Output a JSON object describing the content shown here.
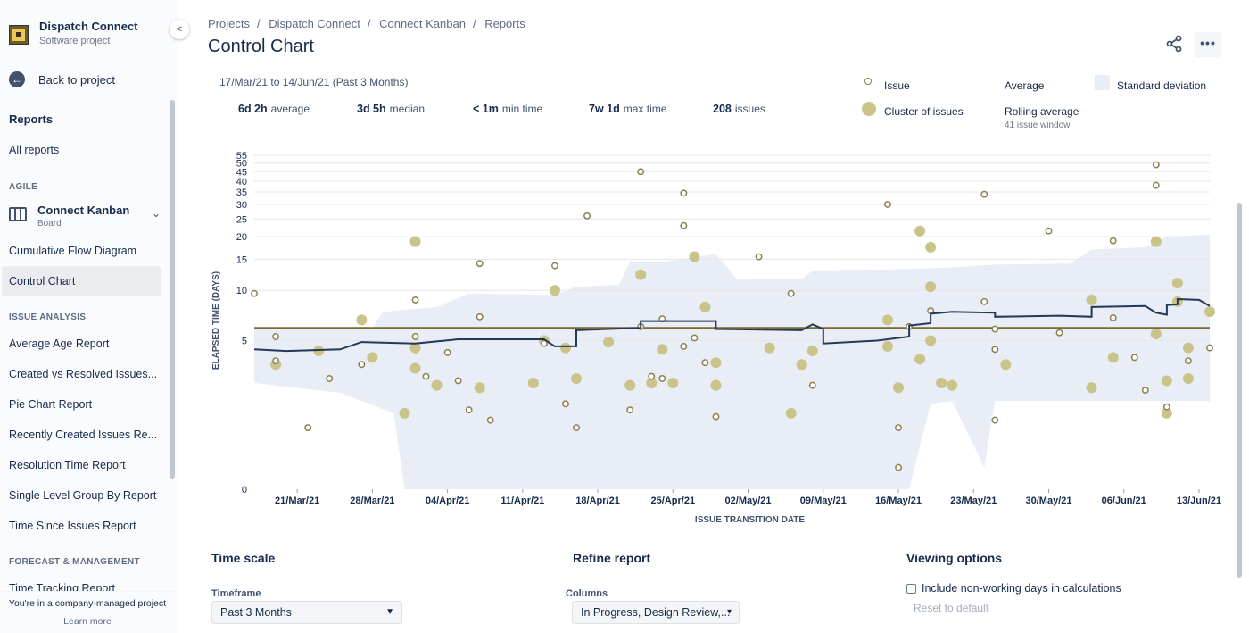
{
  "sidebar": {
    "project_name": "Dispatch Connect",
    "project_type": "Software project",
    "back_label": "Back to project",
    "reports_heading": "Reports",
    "all_reports": "All reports",
    "agile_label": "AGILE",
    "board_name": "Connect Kanban",
    "board_type": "Board",
    "agile_items": [
      "Cumulative Flow Diagram",
      "Control Chart"
    ],
    "issue_analysis_label": "ISSUE ANALYSIS",
    "issue_analysis_items": [
      "Average Age Report",
      "Created vs Resolved Issues...",
      "Pie Chart Report",
      "Recently Created Issues Re...",
      "Resolution Time Report",
      "Single Level Group By Report",
      "Time Since Issues Report"
    ],
    "forecast_label": "FORECAST & MANAGEMENT",
    "forecast_items": [
      "Time Tracking Report"
    ],
    "footer_text": "You're in a company-managed project",
    "footer_link": "Learn more"
  },
  "breadcrumbs": [
    "Projects",
    "Dispatch Connect",
    "Connect Kanban",
    "Reports"
  ],
  "page_title": "Control Chart",
  "summary": {
    "date_range": "17/Mar/21 to 14/Jun/21 (Past 3 Months)",
    "average_value": "6d 2h",
    "average_label": "average",
    "median_value": "3d 5h",
    "median_label": "median",
    "min_value": "< 1m",
    "min_label": "min time",
    "max_value": "7w 1d",
    "max_label": "max time",
    "issues_value": "208",
    "issues_label": "issues"
  },
  "legend": {
    "issue": "Issue",
    "cluster": "Cluster of issues",
    "average": "Average",
    "rolling_average": "Rolling average",
    "rolling_window": "41 issue window",
    "std_dev": "Standard deviation"
  },
  "colors": {
    "issue_stroke": "#8a8150",
    "cluster_fill": "#c8c48a",
    "average_line": "#7a6a34",
    "rolling_line": "#253858",
    "std_band": "#e9edf5"
  },
  "chart_data": {
    "type": "scatter",
    "xlabel": "ISSUE TRANSITION DATE",
    "ylabel": "ELAPSED TIME (DAYS)",
    "y_scale": "log",
    "x_range": [
      "2021-03-17",
      "2021-06-14"
    ],
    "y_ticks": [
      0,
      5,
      10,
      15,
      20,
      25,
      30,
      35,
      40,
      45,
      50,
      55
    ],
    "x_ticks": [
      "21/Mar/21",
      "28/Mar/21",
      "04/Apr/21",
      "11/Apr/21",
      "18/Apr/21",
      "25/Apr/21",
      "02/May/21",
      "09/May/21",
      "16/May/21",
      "23/May/21",
      "30/May/21",
      "06/Jun/21",
      "13/Jun/21"
    ],
    "average": 6,
    "issues": [
      [
        "2021-03-17",
        9.6
      ],
      [
        "2021-03-19",
        5.3
      ],
      [
        "2021-03-19",
        3.7
      ],
      [
        "2021-03-22",
        1.1
      ],
      [
        "2021-03-24",
        2.8
      ],
      [
        "2021-03-27",
        3.5
      ],
      [
        "2021-04-01",
        8.8
      ],
      [
        "2021-04-01",
        5.3
      ],
      [
        "2021-04-02",
        2.9
      ],
      [
        "2021-04-04",
        4.2
      ],
      [
        "2021-04-05",
        2.7
      ],
      [
        "2021-04-06",
        1.6
      ],
      [
        "2021-04-07",
        14.2
      ],
      [
        "2021-04-07",
        7.0
      ],
      [
        "2021-04-08",
        1.3
      ],
      [
        "2021-04-13",
        4.8
      ],
      [
        "2021-04-14",
        13.8
      ],
      [
        "2021-04-15",
        1.8
      ],
      [
        "2021-04-16",
        1.1
      ],
      [
        "2021-04-17",
        26.0
      ],
      [
        "2021-04-21",
        1.6
      ],
      [
        "2021-04-22",
        6.1
      ],
      [
        "2021-04-22",
        45.0
      ],
      [
        "2021-04-23",
        2.9
      ],
      [
        "2021-04-24",
        6.8
      ],
      [
        "2021-04-24",
        2.8
      ],
      [
        "2021-04-26",
        4.6
      ],
      [
        "2021-04-26",
        34.5
      ],
      [
        "2021-04-26",
        23.0
      ],
      [
        "2021-04-27",
        5.2
      ],
      [
        "2021-04-28",
        3.6
      ],
      [
        "2021-04-29",
        1.4
      ],
      [
        "2021-05-03",
        15.5
      ],
      [
        "2021-05-06",
        9.6
      ],
      [
        "2021-05-08",
        2.5
      ],
      [
        "2021-05-15",
        30.0
      ],
      [
        "2021-05-16",
        1.1
      ],
      [
        "2021-05-16",
        0.3
      ],
      [
        "2021-05-17",
        6.1
      ],
      [
        "2021-05-19",
        7.6
      ],
      [
        "2021-05-24",
        8.6
      ],
      [
        "2021-05-24",
        34.0
      ],
      [
        "2021-05-25",
        5.9
      ],
      [
        "2021-05-25",
        4.4
      ],
      [
        "2021-05-25",
        1.3
      ],
      [
        "2021-05-30",
        21.5
      ],
      [
        "2021-05-31",
        5.6
      ],
      [
        "2021-06-05",
        19.0
      ],
      [
        "2021-06-05",
        6.9
      ],
      [
        "2021-06-07",
        3.9
      ],
      [
        "2021-06-08",
        2.3
      ],
      [
        "2021-06-09",
        49.0
      ],
      [
        "2021-06-09",
        38.0
      ],
      [
        "2021-06-10",
        1.7
      ],
      [
        "2021-06-12",
        3.7
      ],
      [
        "2021-06-14",
        4.5
      ]
    ],
    "clusters": [
      [
        "2021-03-19",
        3.5
      ],
      [
        "2021-03-23",
        4.3
      ],
      [
        "2021-03-27",
        6.7
      ],
      [
        "2021-03-28",
        3.9
      ],
      [
        "2021-03-31",
        1.5
      ],
      [
        "2021-04-01",
        3.3
      ],
      [
        "2021-04-01",
        4.5
      ],
      [
        "2021-04-01",
        18.8
      ],
      [
        "2021-04-03",
        2.5
      ],
      [
        "2021-04-07",
        2.4
      ],
      [
        "2021-04-12",
        2.6
      ],
      [
        "2021-04-13",
        5.0
      ],
      [
        "2021-04-14",
        10.0
      ],
      [
        "2021-04-15",
        4.5
      ],
      [
        "2021-04-16",
        2.8
      ],
      [
        "2021-04-19",
        4.9
      ],
      [
        "2021-04-21",
        2.5
      ],
      [
        "2021-04-22",
        12.3
      ],
      [
        "2021-04-23",
        2.6
      ],
      [
        "2021-04-24",
        4.4
      ],
      [
        "2021-04-25",
        2.6
      ],
      [
        "2021-04-27",
        15.5
      ],
      [
        "2021-04-28",
        8.0
      ],
      [
        "2021-04-29",
        3.6
      ],
      [
        "2021-04-29",
        2.5
      ],
      [
        "2021-05-04",
        4.5
      ],
      [
        "2021-05-06",
        1.5
      ],
      [
        "2021-05-07",
        3.5
      ],
      [
        "2021-05-08",
        4.3
      ],
      [
        "2021-05-15",
        6.7
      ],
      [
        "2021-05-15",
        4.6
      ],
      [
        "2021-05-16",
        2.4
      ],
      [
        "2021-05-18",
        3.8
      ],
      [
        "2021-05-18",
        21.5
      ],
      [
        "2021-05-19",
        17.5
      ],
      [
        "2021-05-19",
        10.5
      ],
      [
        "2021-05-19",
        5.0
      ],
      [
        "2021-05-20",
        2.6
      ],
      [
        "2021-05-21",
        2.5
      ],
      [
        "2021-05-26",
        3.5
      ],
      [
        "2021-06-03",
        8.8
      ],
      [
        "2021-06-03",
        2.4
      ],
      [
        "2021-06-05",
        3.9
      ],
      [
        "2021-06-09",
        18.8
      ],
      [
        "2021-06-09",
        5.5
      ],
      [
        "2021-06-10",
        2.7
      ],
      [
        "2021-06-10",
        1.5
      ],
      [
        "2021-06-11",
        11.0
      ],
      [
        "2021-06-11",
        8.6
      ],
      [
        "2021-06-12",
        4.5
      ],
      [
        "2021-06-12",
        2.8
      ],
      [
        "2021-06-14",
        7.5
      ]
    ],
    "rolling_average": [
      [
        "2021-03-17",
        4.4
      ],
      [
        "2021-03-20",
        4.3
      ],
      [
        "2021-03-25",
        4.4
      ],
      [
        "2021-03-27",
        4.9
      ],
      [
        "2021-04-01",
        4.8
      ],
      [
        "2021-04-05",
        5.1
      ],
      [
        "2021-04-09",
        5.1
      ],
      [
        "2021-04-13",
        5.1
      ],
      [
        "2021-04-14",
        4.6
      ],
      [
        "2021-04-16",
        4.6
      ],
      [
        "2021-04-16",
        5.8
      ],
      [
        "2021-04-22",
        6.0
      ],
      [
        "2021-04-22",
        6.6
      ],
      [
        "2021-04-29",
        6.6
      ],
      [
        "2021-04-29",
        5.9
      ],
      [
        "2021-05-07",
        5.8
      ],
      [
        "2021-05-08",
        6.3
      ],
      [
        "2021-05-09",
        5.9
      ],
      [
        "2021-05-09",
        4.8
      ],
      [
        "2021-05-14",
        5.0
      ],
      [
        "2021-05-17",
        5.3
      ],
      [
        "2021-05-17",
        6.2
      ],
      [
        "2021-05-19",
        6.4
      ],
      [
        "2021-05-19",
        7.3
      ],
      [
        "2021-05-21",
        7.5
      ],
      [
        "2021-05-25",
        7.4
      ],
      [
        "2021-05-25",
        7.0
      ],
      [
        "2021-05-31",
        7.1
      ],
      [
        "2021-06-03",
        7.0
      ],
      [
        "2021-06-03",
        8.0
      ],
      [
        "2021-06-08",
        8.1
      ],
      [
        "2021-06-09",
        7.4
      ],
      [
        "2021-06-10",
        7.2
      ],
      [
        "2021-06-10",
        8.2
      ],
      [
        "2021-06-11",
        8.3
      ],
      [
        "2021-06-11",
        8.9
      ],
      [
        "2021-06-13",
        8.8
      ],
      [
        "2021-06-14",
        8.1
      ]
    ],
    "std_dev_band_upper": [
      [
        "2021-03-17",
        5.9
      ],
      [
        "2021-03-28",
        6.0
      ],
      [
        "2021-03-29",
        7.5
      ],
      [
        "2021-04-03",
        8.0
      ],
      [
        "2021-04-06",
        9.6
      ],
      [
        "2021-04-14",
        9.4
      ],
      [
        "2021-04-16",
        10.5
      ],
      [
        "2021-04-20",
        10.8
      ],
      [
        "2021-04-21",
        14.5
      ],
      [
        "2021-04-24",
        14.5
      ],
      [
        "2021-04-29",
        16.0
      ],
      [
        "2021-05-01",
        11.5
      ],
      [
        "2021-05-07",
        11.6
      ],
      [
        "2021-05-08",
        13.0
      ],
      [
        "2021-05-16",
        13.2
      ],
      [
        "2021-05-21",
        13.5
      ],
      [
        "2021-05-25",
        14.0
      ],
      [
        "2021-06-01",
        14.2
      ],
      [
        "2021-06-03",
        17.0
      ],
      [
        "2021-06-08",
        17.5
      ],
      [
        "2021-06-10",
        20.0
      ],
      [
        "2021-06-14",
        20.5
      ]
    ],
    "std_dev_band_lower": [
      [
        "2021-03-17",
        2.6
      ],
      [
        "2021-03-25",
        2.2
      ],
      [
        "2021-03-30",
        1.5
      ],
      [
        "2021-03-31",
        0
      ],
      [
        "2021-05-17",
        0
      ],
      [
        "2021-05-19",
        1.8
      ],
      [
        "2021-05-21",
        1.9
      ],
      [
        "2021-05-24",
        0.3
      ],
      [
        "2021-05-25",
        1.9
      ],
      [
        "2021-06-14",
        1.9
      ]
    ]
  },
  "controls": {
    "time_scale_title": "Time scale",
    "timeframe_label": "Timeframe",
    "timeframe_value": "Past 3 Months",
    "refine_title": "Refine report",
    "columns_label": "Columns",
    "columns_value": "In Progress, Design Review,...",
    "viewing_title": "Viewing options",
    "nonworking_label": "Include non-working days in calculations",
    "reset_label": "Reset to default"
  }
}
